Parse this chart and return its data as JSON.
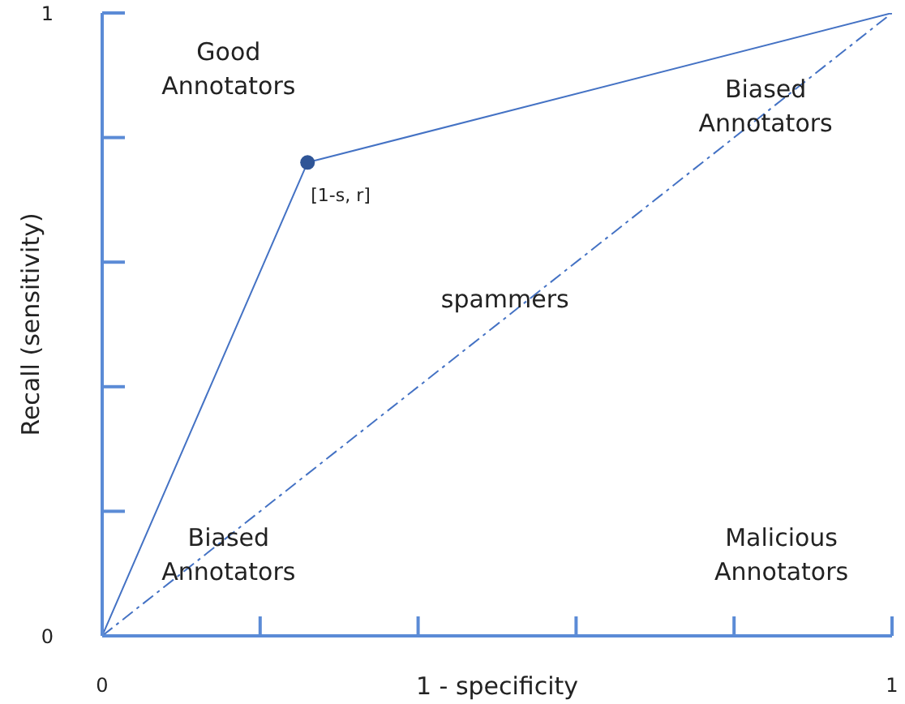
{
  "chart_data": {
    "type": "line",
    "xlabel": "1 - specificity",
    "ylabel": "Recall (sensitivity)",
    "xlim": [
      0,
      1
    ],
    "ylim": [
      0,
      1
    ],
    "xticks": [
      0,
      {
        "value": 0.2,
        "label": null
      },
      {
        "value": 0.4,
        "label": null
      },
      {
        "value": 0.6,
        "label": null
      },
      {
        "value": 0.8,
        "label": null
      },
      1
    ],
    "yticks": [
      0,
      {
        "value": 0.2,
        "label": null
      },
      {
        "value": 0.4,
        "label": null
      },
      {
        "value": 0.6,
        "label": null
      },
      {
        "value": 0.8,
        "label": null
      },
      1
    ],
    "series": [
      {
        "color": "#4472c4",
        "x": [
          0,
          0.26,
          1
        ],
        "values": [
          0,
          0.76,
          1
        ],
        "marker": "none",
        "line_style": "solid"
      },
      {
        "color": "#4472c4",
        "x": [
          0,
          1
        ],
        "values": [
          0,
          1
        ],
        "marker": "none",
        "line_style": "dashed"
      },
      {
        "type": "scatter",
        "color": "#2f5597",
        "x": [
          0.26
        ],
        "values": [
          0.76
        ],
        "marker": "circle",
        "value_labels": [
          "[1-s, r]"
        ]
      }
    ],
    "annotations": [
      "Good\nAnnotators",
      "Biased\nAnnotators",
      "spammers",
      "Biased\nAnnotators",
      "Malicious\nAnnotators"
    ]
  }
}
